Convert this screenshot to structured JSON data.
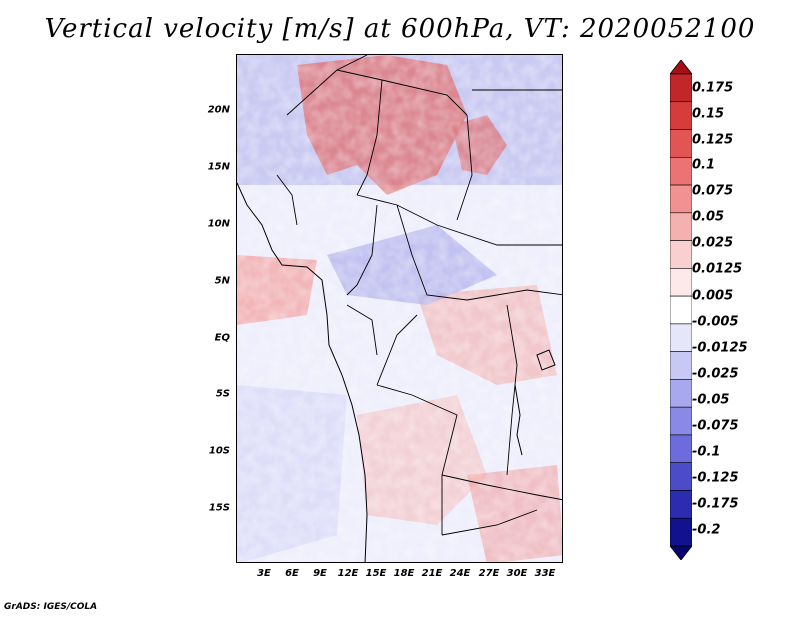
{
  "title": "Vertical velocity [m/s] at 600hPa, VT: 2020052100",
  "footer": "GrADS: IGES/COLA",
  "map": {
    "variable": "Vertical velocity",
    "units": "m/s",
    "level": "600hPa",
    "valid_time": "2020052100",
    "lat_labels": [
      "20N",
      "15N",
      "10N",
      "5N",
      "EQ",
      "5S",
      "10S",
      "15S"
    ],
    "lon_labels": [
      "3E",
      "6E",
      "9E",
      "12E",
      "15E",
      "18E",
      "21E",
      "24E",
      "27E",
      "30E",
      "33E"
    ],
    "lat_range": [
      -20,
      24.6
    ],
    "lon_range": [
      0,
      35
    ]
  },
  "colorbar": {
    "labels": [
      "0.175",
      "0.15",
      "0.125",
      "0.1",
      "0.075",
      "0.05",
      "0.025",
      "0.0125",
      "0.005",
      "-0.005",
      "-0.0125",
      "-0.025",
      "-0.05",
      "-0.075",
      "-0.1",
      "-0.125",
      "-0.175",
      "-0.2"
    ],
    "colors": [
      "#a50f15",
      "#c0262a",
      "#d63c3c",
      "#e35555",
      "#ec7373",
      "#f19191",
      "#f5b0b0",
      "#f9cfcf",
      "#fde9e9",
      "#ffffff",
      "#e6e6fa",
      "#c8c8f4",
      "#a8a8ee",
      "#8a8ae6",
      "#6c6cdc",
      "#4c4cc8",
      "#2c2cb0",
      "#12128e",
      "#06066e"
    ]
  }
}
